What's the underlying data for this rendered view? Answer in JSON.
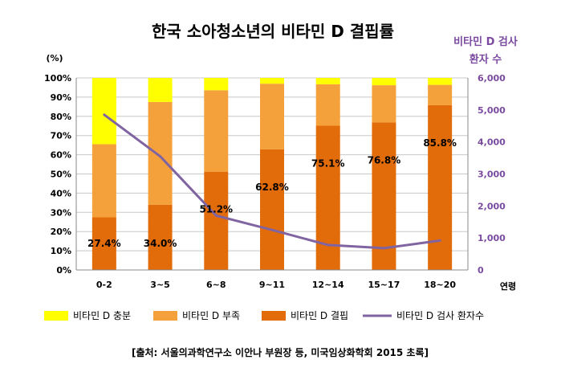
{
  "chart_data": {
    "type": "bar",
    "stacked": true,
    "title": "한국 소아청소년의 비타민 D 결핍률",
    "left_axis_unit": "(%)",
    "right_axis_title_line1": "비타민 D 검사",
    "right_axis_title_line2": "환자 수",
    "xlabel": "연령",
    "categories": [
      "0-2",
      "3~5",
      "6~8",
      "9~11",
      "12~14",
      "15~17",
      "18~20"
    ],
    "left_ticks": [
      "0%",
      "10%",
      "20%",
      "30%",
      "40%",
      "50%",
      "60%",
      "70%",
      "80%",
      "90%",
      "100%"
    ],
    "right_ticks": [
      "0",
      "1,000",
      "2,000",
      "3,000",
      "4,000",
      "5,000",
      "6,000"
    ],
    "ylim": [
      0,
      100
    ],
    "y2lim": [
      0,
      6000
    ],
    "series": [
      {
        "name": "비타민 D 결핍",
        "color": "#e36c0a",
        "values": [
          27.4,
          34.0,
          51.2,
          62.8,
          75.1,
          76.8,
          85.8
        ]
      },
      {
        "name": "비타민 D 부족",
        "color": "#f4a13b",
        "values": [
          38.1,
          53.5,
          42.4,
          34.2,
          21.6,
          19.4,
          10.6
        ]
      },
      {
        "name": "비타민 D 충분",
        "color": "#ffff00",
        "values": [
          34.5,
          12.5,
          6.4,
          3.0,
          3.3,
          3.8,
          3.6
        ]
      }
    ],
    "line_series": {
      "name": "비타민 D 검사 환자수",
      "color": "#8064a2",
      "values": [
        4850,
        3550,
        1700,
        1250,
        780,
        680,
        920
      ]
    },
    "data_labels": [
      "27.4%",
      "34.0%",
      "51.2%",
      "62.8%",
      "75.1%",
      "76.8%",
      "85.8%"
    ],
    "legend": [
      {
        "label": "비타민 D 충분",
        "color": "#ffff00",
        "kind": "box"
      },
      {
        "label": "비타민 D 부족",
        "color": "#f4a13b",
        "kind": "box"
      },
      {
        "label": "비타민 D 결핍",
        "color": "#e36c0a",
        "kind": "box"
      },
      {
        "label": "비타민 D 검사 환자수",
        "color": "#8064a2",
        "kind": "line"
      }
    ],
    "source": "[출처: 서울의과학연구소 이안나 부원장 등, 미국임상화학회 2015 초록]",
    "grid": true,
    "legend_position": "bottom"
  }
}
